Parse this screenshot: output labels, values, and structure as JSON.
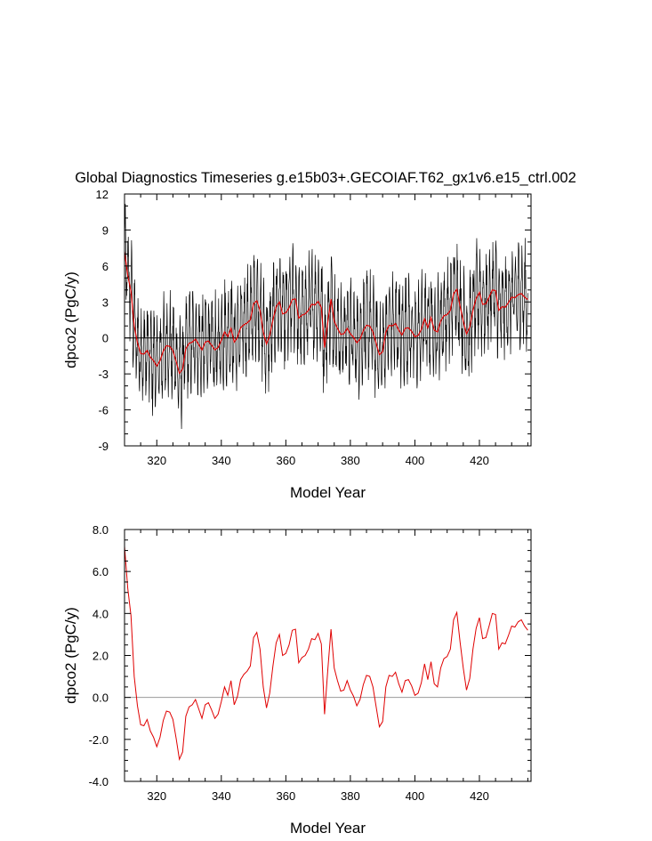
{
  "title": "Global Diagnostics Timeseries g.e15b03+.GECOIAF.T62_gx1v6.e15_ctrl.002",
  "chart_data": [
    {
      "type": "line",
      "xlabel": "Model Year",
      "ylabel": "dpco2 (PgC/y)",
      "xlim": [
        310,
        436
      ],
      "ylim": [
        -9,
        12
      ],
      "xticks": [
        320,
        340,
        360,
        380,
        400,
        420
      ],
      "xtick_labels": [
        "320",
        "340",
        "360",
        "380",
        "400",
        "420"
      ],
      "yticks": [
        -9,
        -6,
        -3,
        0,
        3,
        6,
        9,
        12
      ],
      "ytick_labels": [
        "-9",
        "-6",
        "-3",
        "0",
        "3",
        "6",
        "9",
        "12"
      ],
      "zero_line": true,
      "colors": {
        "monthly": "#000000",
        "annual": "#e00000"
      },
      "series": [
        {
          "kind": "monthly",
          "color": "#000000",
          "amplitude": 4.2
        },
        {
          "kind": "annual",
          "color": "#e00000"
        }
      ]
    },
    {
      "type": "line",
      "xlabel": "Model Year",
      "ylabel": "dpco2 (PgC/y)",
      "xlim": [
        310,
        436
      ],
      "ylim": [
        -4,
        8
      ],
      "xticks": [
        320,
        340,
        360,
        380,
        400,
        420
      ],
      "xtick_labels": [
        "320",
        "340",
        "360",
        "380",
        "400",
        "420"
      ],
      "yticks": [
        -4,
        -2,
        0,
        2,
        4,
        6,
        8
      ],
      "ytick_labels": [
        "-4.0",
        "-2.0",
        "0.0",
        "2.0",
        "4.0",
        "6.0",
        "8.0"
      ],
      "zero_line": true,
      "colors": {
        "annual": "#e00000",
        "zero": "#999999"
      },
      "series": [
        {
          "kind": "annual",
          "color": "#e00000",
          "x": [
            310,
            311,
            312,
            313,
            314,
            315,
            316,
            317,
            318,
            319,
            320,
            321,
            322,
            323,
            324,
            325,
            326,
            327,
            328,
            329,
            330,
            331,
            332,
            333,
            334,
            335,
            336,
            337,
            338,
            339,
            340,
            341,
            342,
            343,
            344,
            345,
            346,
            347,
            348,
            349,
            350,
            351,
            352,
            353,
            354,
            355,
            356,
            357,
            358,
            359,
            360,
            361,
            362,
            363,
            364,
            365,
            366,
            367,
            368,
            369,
            370,
            371,
            372,
            373,
            374,
            375,
            376,
            377,
            378,
            379,
            380,
            381,
            382,
            383,
            384,
            385,
            386,
            387,
            388,
            389,
            390,
            391,
            392,
            393,
            394,
            395,
            396,
            397,
            398,
            399,
            400,
            401,
            402,
            403,
            404,
            405,
            406,
            407,
            408,
            409,
            410,
            411,
            412,
            413,
            414,
            415,
            416,
            417,
            418,
            419,
            420,
            421,
            422,
            423,
            424,
            425,
            426,
            427,
            428,
            429,
            430,
            431,
            432,
            433,
            434,
            435
          ],
          "values": [
            7.2,
            5.2,
            3.9,
            1.0,
            -0.4,
            -1.3,
            -1.35,
            -1.05,
            -1.6,
            -1.9,
            -2.35,
            -1.9,
            -1.1,
            -0.65,
            -0.7,
            -1.05,
            -1.95,
            -2.95,
            -2.6,
            -0.9,
            -0.45,
            -0.35,
            -0.1,
            -0.55,
            -1.0,
            -0.35,
            -0.25,
            -0.6,
            -1.0,
            -0.8,
            -0.2,
            0.5,
            0.1,
            0.8,
            -0.35,
            0.05,
            0.85,
            1.1,
            1.25,
            1.5,
            2.85,
            3.1,
            2.3,
            0.5,
            -0.5,
            0.2,
            1.5,
            2.6,
            3.0,
            2.0,
            2.1,
            2.5,
            3.2,
            3.25,
            1.65,
            1.9,
            2.0,
            2.3,
            2.8,
            2.75,
            3.05,
            2.55,
            -0.8,
            1.3,
            3.25,
            1.4,
            0.8,
            0.3,
            0.35,
            0.8,
            0.35,
            0.05,
            -0.4,
            -0.1,
            0.6,
            1.05,
            1.0,
            0.5,
            -0.45,
            -1.4,
            -1.15,
            0.5,
            1.05,
            1.0,
            1.2,
            0.65,
            0.25,
            0.8,
            0.85,
            0.55,
            0.1,
            0.2,
            0.7,
            1.6,
            0.85,
            1.7,
            0.65,
            0.5,
            1.4,
            1.85,
            1.95,
            2.3,
            3.7,
            4.05,
            2.65,
            1.4,
            0.35,
            0.9,
            2.3,
            3.3,
            3.8,
            2.8,
            2.85,
            3.4,
            4.0,
            3.95,
            2.3,
            2.6,
            2.55,
            2.95,
            3.4,
            3.35,
            3.6,
            3.7,
            3.4,
            3.2
          ]
        },
        {
          "kind": "zero",
          "color": "#999999"
        }
      ]
    }
  ]
}
